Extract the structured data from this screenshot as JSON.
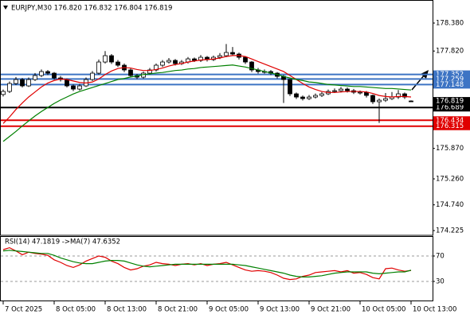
{
  "chart_data": [
    {
      "type": "candlestick",
      "title": "EURJPY,M30  176.820 176.832 176.804 176.819",
      "open": [
        176.95,
        177.011,
        177.17,
        177.249,
        177.122,
        177.249,
        177.329,
        177.409,
        177.377,
        177.281,
        177.249,
        177.122,
        177.058,
        177.122,
        177.249,
        177.377,
        177.6,
        177.727,
        177.6,
        177.536,
        177.441,
        177.329,
        177.297,
        177.377,
        177.441,
        177.536,
        177.6,
        177.632,
        177.568,
        177.6,
        177.663,
        177.632,
        177.695,
        177.648,
        177.695,
        177.727,
        177.791,
        177.759,
        177.695,
        177.6,
        177.441,
        177.409,
        177.409,
        177.377,
        177.313,
        177.249,
        176.963,
        176.899,
        176.867,
        176.899,
        176.931,
        176.963,
        177.011,
        177.026,
        177.058,
        177.026,
        176.995,
        176.995,
        176.931,
        176.804,
        176.835,
        176.867,
        176.899,
        176.963,
        176.82
      ],
      "high": [
        177.05,
        177.21,
        177.3,
        177.28,
        177.29,
        177.38,
        177.45,
        177.44,
        177.4,
        177.32,
        177.27,
        177.15,
        177.16,
        177.29,
        177.42,
        177.65,
        177.82,
        177.76,
        177.64,
        177.57,
        177.47,
        177.36,
        177.41,
        177.48,
        177.57,
        177.64,
        177.68,
        177.66,
        177.64,
        177.7,
        177.69,
        177.74,
        177.72,
        177.73,
        177.78,
        177.96,
        177.9,
        177.79,
        177.72,
        177.62,
        177.48,
        177.45,
        177.44,
        177.4,
        177.34,
        177.26,
        176.99,
        176.93,
        176.94,
        176.97,
        177.0,
        177.05,
        177.07,
        177.1,
        177.09,
        177.06,
        177.03,
        177.02,
        176.95,
        176.87,
        176.98,
        177.0,
        177.04,
        176.99,
        176.832
      ],
      "low": [
        176.91,
        176.98,
        177.14,
        177.09,
        177.1,
        177.22,
        177.3,
        177.34,
        177.25,
        177.21,
        177.09,
        177.02,
        177.03,
        177.1,
        177.22,
        177.35,
        177.57,
        177.56,
        177.5,
        177.4,
        177.29,
        177.26,
        177.27,
        177.35,
        177.41,
        177.5,
        177.57,
        177.53,
        177.54,
        177.57,
        177.6,
        177.6,
        177.61,
        177.62,
        177.66,
        177.7,
        177.72,
        177.65,
        177.56,
        177.4,
        177.37,
        177.37,
        177.34,
        177.27,
        176.78,
        176.92,
        176.86,
        176.83,
        176.84,
        176.87,
        176.9,
        176.94,
        176.98,
        176.99,
        176.99,
        176.96,
        176.95,
        176.89,
        176.76,
        176.38,
        176.8,
        176.84,
        176.86,
        176.86,
        176.804
      ],
      "close": [
        177.011,
        177.17,
        177.249,
        177.122,
        177.249,
        177.329,
        177.409,
        177.377,
        177.281,
        177.249,
        177.122,
        177.058,
        177.122,
        177.249,
        177.377,
        177.6,
        177.727,
        177.6,
        177.536,
        177.441,
        177.329,
        177.297,
        177.377,
        177.441,
        177.536,
        177.6,
        177.632,
        177.568,
        177.6,
        177.663,
        177.632,
        177.695,
        177.648,
        177.695,
        177.727,
        177.791,
        177.759,
        177.695,
        177.6,
        177.441,
        177.409,
        177.409,
        177.377,
        177.313,
        177.249,
        176.963,
        176.899,
        176.867,
        176.899,
        176.931,
        176.963,
        177.011,
        177.026,
        177.058,
        177.026,
        176.995,
        176.995,
        176.931,
        176.804,
        176.835,
        176.867,
        176.899,
        176.963,
        176.899,
        176.819
      ],
      "lines": [
        {
          "color": "#e00000",
          "values": [
            176.37,
            176.5,
            176.65,
            176.78,
            176.9,
            177.0,
            177.1,
            177.18,
            177.23,
            177.26,
            177.25,
            177.22,
            177.19,
            177.18,
            177.2,
            177.26,
            177.35,
            177.42,
            177.47,
            177.49,
            177.48,
            177.45,
            177.43,
            177.43,
            177.45,
            177.48,
            177.52,
            177.55,
            177.57,
            177.6,
            177.62,
            177.64,
            177.65,
            177.66,
            177.68,
            177.71,
            177.73,
            177.73,
            177.71,
            177.66,
            177.61,
            177.56,
            177.51,
            177.46,
            177.41,
            177.33,
            177.25,
            177.17,
            177.1,
            177.05,
            177.01,
            176.99,
            176.99,
            177.0,
            177.01,
            177.01,
            177.01,
            177.0,
            176.97,
            176.93,
            176.91,
            176.9,
            176.91,
            176.91,
            176.9
          ]
        },
        {
          "color": "#008000",
          "values": [
            176.01,
            176.11,
            176.21,
            176.32,
            176.42,
            176.52,
            176.61,
            176.69,
            176.77,
            176.84,
            176.9,
            176.96,
            177.01,
            177.05,
            177.09,
            177.13,
            177.17,
            177.21,
            177.25,
            177.27,
            177.3,
            177.32,
            177.35,
            177.36,
            177.38,
            177.39,
            177.41,
            177.43,
            177.44,
            177.46,
            177.47,
            177.49,
            177.5,
            177.51,
            177.52,
            177.53,
            177.54,
            177.52,
            177.5,
            177.47,
            177.44,
            177.41,
            177.38,
            177.35,
            177.31,
            177.28,
            177.25,
            177.23,
            177.2,
            177.19,
            177.17,
            177.15,
            177.14,
            177.13,
            177.12,
            177.11,
            177.11,
            177.1,
            177.09,
            177.08,
            177.07,
            177.07,
            177.06,
            177.05,
            177.04
          ]
        }
      ],
      "ylim": [
        174.13,
        178.81
      ],
      "yticks": [
        {
          "value": 178.38,
          "label": "178.380"
        },
        {
          "value": 177.82,
          "label": "177.820"
        },
        {
          "value": 175.87,
          "label": "175.870"
        },
        {
          "value": 175.26,
          "label": "175.260"
        },
        {
          "value": 174.74,
          "label": "174.740"
        },
        174.225
      ],
      "levels": [
        {
          "value": 177.352,
          "color": "#3d74c4"
        },
        {
          "value": 177.259,
          "color": "#3d74c4"
        },
        {
          "value": 177.148,
          "color": "#3d74c4"
        },
        {
          "value": 176.689,
          "color": "#000000"
        },
        {
          "value": 176.434,
          "color": "#e00000"
        },
        {
          "value": 176.315,
          "color": "#e00000"
        }
      ]
    },
    {
      "type": "line",
      "title": "RSI(14) 47.1819 ->MA(7) 47.6352",
      "lines": [
        {
          "color": "#e00000",
          "values": [
            80,
            83,
            78,
            72,
            76,
            74,
            73,
            71,
            64,
            60,
            55,
            52,
            56,
            62,
            66,
            70,
            68,
            62,
            58,
            52,
            48,
            50,
            54,
            56,
            60,
            58,
            57,
            55,
            57,
            58,
            56,
            58,
            55,
            57,
            58,
            60,
            56,
            52,
            48,
            46,
            47,
            46,
            44,
            40,
            35,
            33,
            34,
            38,
            40,
            44,
            45,
            46,
            47,
            45,
            47,
            43,
            44,
            41,
            36,
            34,
            50,
            51,
            48,
            46,
            47.1819
          ]
        },
        {
          "color": "#008000",
          "values": [
            78,
            79,
            78,
            77,
            76,
            75,
            74,
            74,
            71,
            67,
            64,
            61,
            59,
            58,
            58,
            60,
            62,
            63,
            63,
            62,
            59,
            56,
            54,
            53,
            54,
            55,
            56,
            57,
            57,
            57,
            57,
            57,
            57,
            57,
            57,
            57,
            57,
            56,
            55,
            53,
            51,
            49,
            47,
            45,
            43,
            40,
            38,
            37,
            37,
            38,
            39,
            41,
            43,
            44,
            45,
            45,
            45,
            45,
            43,
            42,
            43,
            44,
            45,
            45,
            47.6352
          ]
        }
      ],
      "ylim": [
        0,
        100
      ],
      "yticks": [
        70,
        30
      ],
      "categories": [
        "7 Oct 2025",
        null,
        null,
        null,
        null,
        null,
        null,
        null,
        "8 Oct 05:00",
        null,
        null,
        null,
        null,
        null,
        null,
        null,
        "8 Oct 13:00",
        null,
        null,
        null,
        null,
        null,
        null,
        null,
        "8 Oct 21:00",
        null,
        null,
        null,
        null,
        null,
        null,
        null,
        "9 Oct 05:00",
        null,
        null,
        null,
        null,
        null,
        null,
        null,
        "9 Oct 13:00",
        null,
        null,
        null,
        null,
        null,
        null,
        null,
        "9 Oct 21:00",
        null,
        null,
        null,
        null,
        null,
        null,
        null,
        "10 Oct 05:00",
        null,
        null,
        null,
        null,
        null,
        null,
        null,
        "10 Oct 13:00"
      ]
    }
  ]
}
